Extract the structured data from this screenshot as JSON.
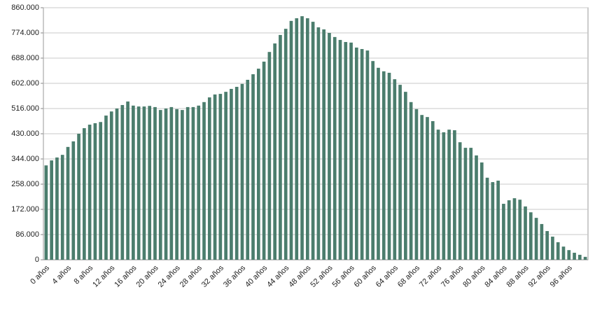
{
  "chart_data": {
    "type": "bar",
    "categories": [
      "0 años",
      null,
      null,
      null,
      "4 años",
      null,
      null,
      null,
      "8 años",
      null,
      null,
      null,
      "12 años",
      null,
      null,
      null,
      "16 años",
      null,
      null,
      null,
      "20 años",
      null,
      null,
      null,
      "24 años",
      null,
      null,
      null,
      "28 años",
      null,
      null,
      null,
      "32 años",
      null,
      null,
      null,
      "36 años",
      null,
      null,
      null,
      "40 años",
      null,
      null,
      null,
      "44 años",
      null,
      null,
      null,
      "48 años",
      null,
      null,
      null,
      "52 años",
      null,
      null,
      null,
      "56 años",
      null,
      null,
      null,
      "60 años",
      null,
      null,
      null,
      "64 años",
      null,
      null,
      null,
      "68 años",
      null,
      null,
      null,
      "72 años",
      null,
      null,
      null,
      "76 años",
      null,
      null,
      null,
      "80 años",
      null,
      null,
      null,
      "84 años",
      null,
      null,
      null,
      "88 años",
      null,
      null,
      null,
      "92 años",
      null,
      null,
      null,
      "96 años",
      null,
      null,
      null
    ],
    "values": [
      322000,
      339000,
      349000,
      358000,
      385000,
      404000,
      430000,
      449000,
      461000,
      466000,
      470000,
      492000,
      506000,
      516000,
      528000,
      540000,
      526000,
      523000,
      523000,
      525000,
      521000,
      511000,
      516000,
      521000,
      514000,
      511000,
      521000,
      521000,
      526000,
      538000,
      554000,
      564000,
      566000,
      573000,
      583000,
      590000,
      600000,
      614000,
      633000,
      652000,
      676000,
      709000,
      738000,
      767000,
      788000,
      815000,
      824000,
      831000,
      824000,
      812000,
      793000,
      786000,
      774000,
      760000,
      750000,
      743000,
      741000,
      724000,
      719000,
      714000,
      678000,
      655000,
      643000,
      638000,
      616000,
      597000,
      573000,
      538000,
      514000,
      494000,
      487000,
      473000,
      444000,
      435000,
      444000,
      442000,
      401000,
      382000,
      382000,
      356000,
      332000,
      280000,
      265000,
      270000,
      191000,
      203000,
      210000,
      205000,
      182000,
      162000,
      143000,
      122000,
      98000,
      79000,
      60000,
      45000,
      33000,
      24000,
      17000,
      10000
    ],
    "color": "#4b7d6d",
    "ylim": [
      0,
      860000
    ],
    "yticks": [
      0,
      {
        "value": 86000,
        "label": "86.000"
      },
      {
        "value": 172000,
        "label": "172.000"
      },
      {
        "value": 258000,
        "label": "258.000"
      },
      {
        "value": 344000,
        "label": "344.000"
      },
      {
        "value": 430000,
        "label": "430.000"
      },
      {
        "value": 516000,
        "label": "516.000"
      },
      {
        "value": 602000,
        "label": "602.000"
      },
      {
        "value": 688000,
        "label": "688.000"
      },
      {
        "value": 774000,
        "label": "774.000"
      },
      {
        "value": 860000,
        "label": "860.000"
      }
    ],
    "grid": true
  }
}
